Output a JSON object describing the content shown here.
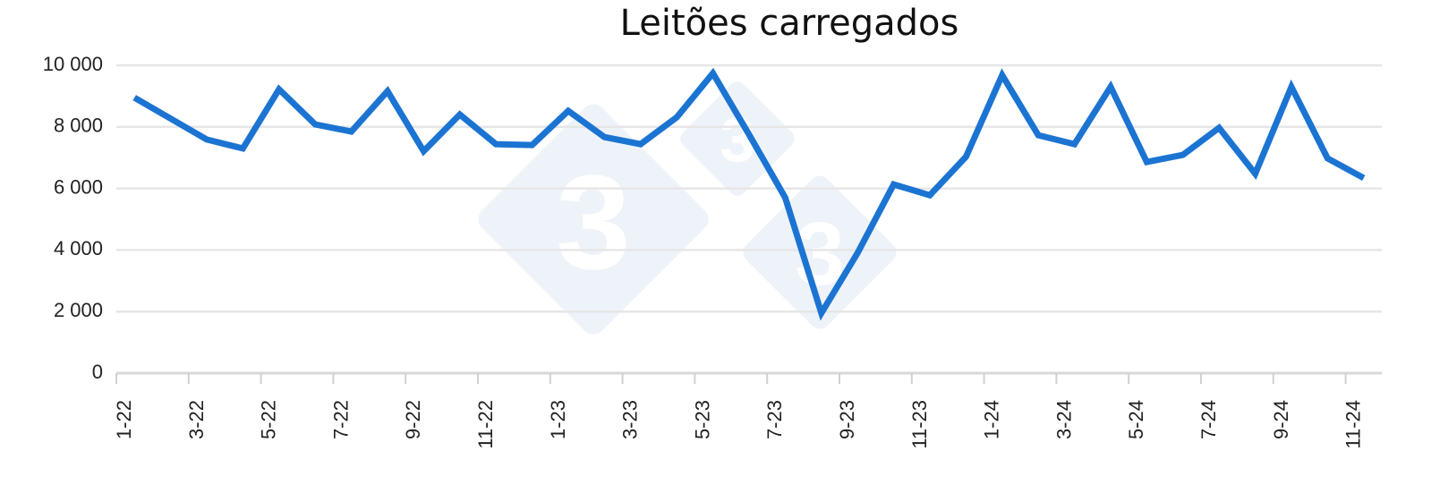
{
  "chart_data": {
    "type": "line",
    "title": "Leitões carregados",
    "categories": [
      "1-22",
      null,
      "3-22",
      null,
      "5-22",
      null,
      "7-22",
      null,
      "9-22",
      null,
      "11-22",
      null,
      "1-23",
      null,
      "3-23",
      null,
      "5-23",
      null,
      "7-23",
      null,
      "9-23",
      null,
      "11-23",
      null,
      "1-24",
      null,
      "3-24",
      null,
      "5-24",
      null,
      "7-24",
      null,
      "9-24",
      null,
      "11-24"
    ],
    "series": [
      {
        "name": "Leitões carregados",
        "color": "#1c74d2",
        "values": [
          8950,
          8270,
          7590,
          7300,
          9220,
          8080,
          7850,
          9160,
          7210,
          8400,
          7440,
          7410,
          8520,
          7670,
          7440,
          8310,
          9740,
          7750,
          5700,
          1950,
          3900,
          6130,
          5780,
          7030,
          9680,
          7730,
          7440,
          9300,
          6860,
          7090,
          7970,
          6480,
          9300,
          6980,
          6340
        ]
      }
    ],
    "ylim": [
      0,
      10000
    ],
    "yticks": [
      0,
      {
        "value": 2000,
        "label": "2 000"
      },
      {
        "value": 4000,
        "label": "4 000"
      },
      {
        "value": 6000,
        "label": "6 000"
      },
      {
        "value": 8000,
        "label": "8 000"
      },
      {
        "value": 10000,
        "label": "10 000"
      }
    ],
    "grid": true
  }
}
